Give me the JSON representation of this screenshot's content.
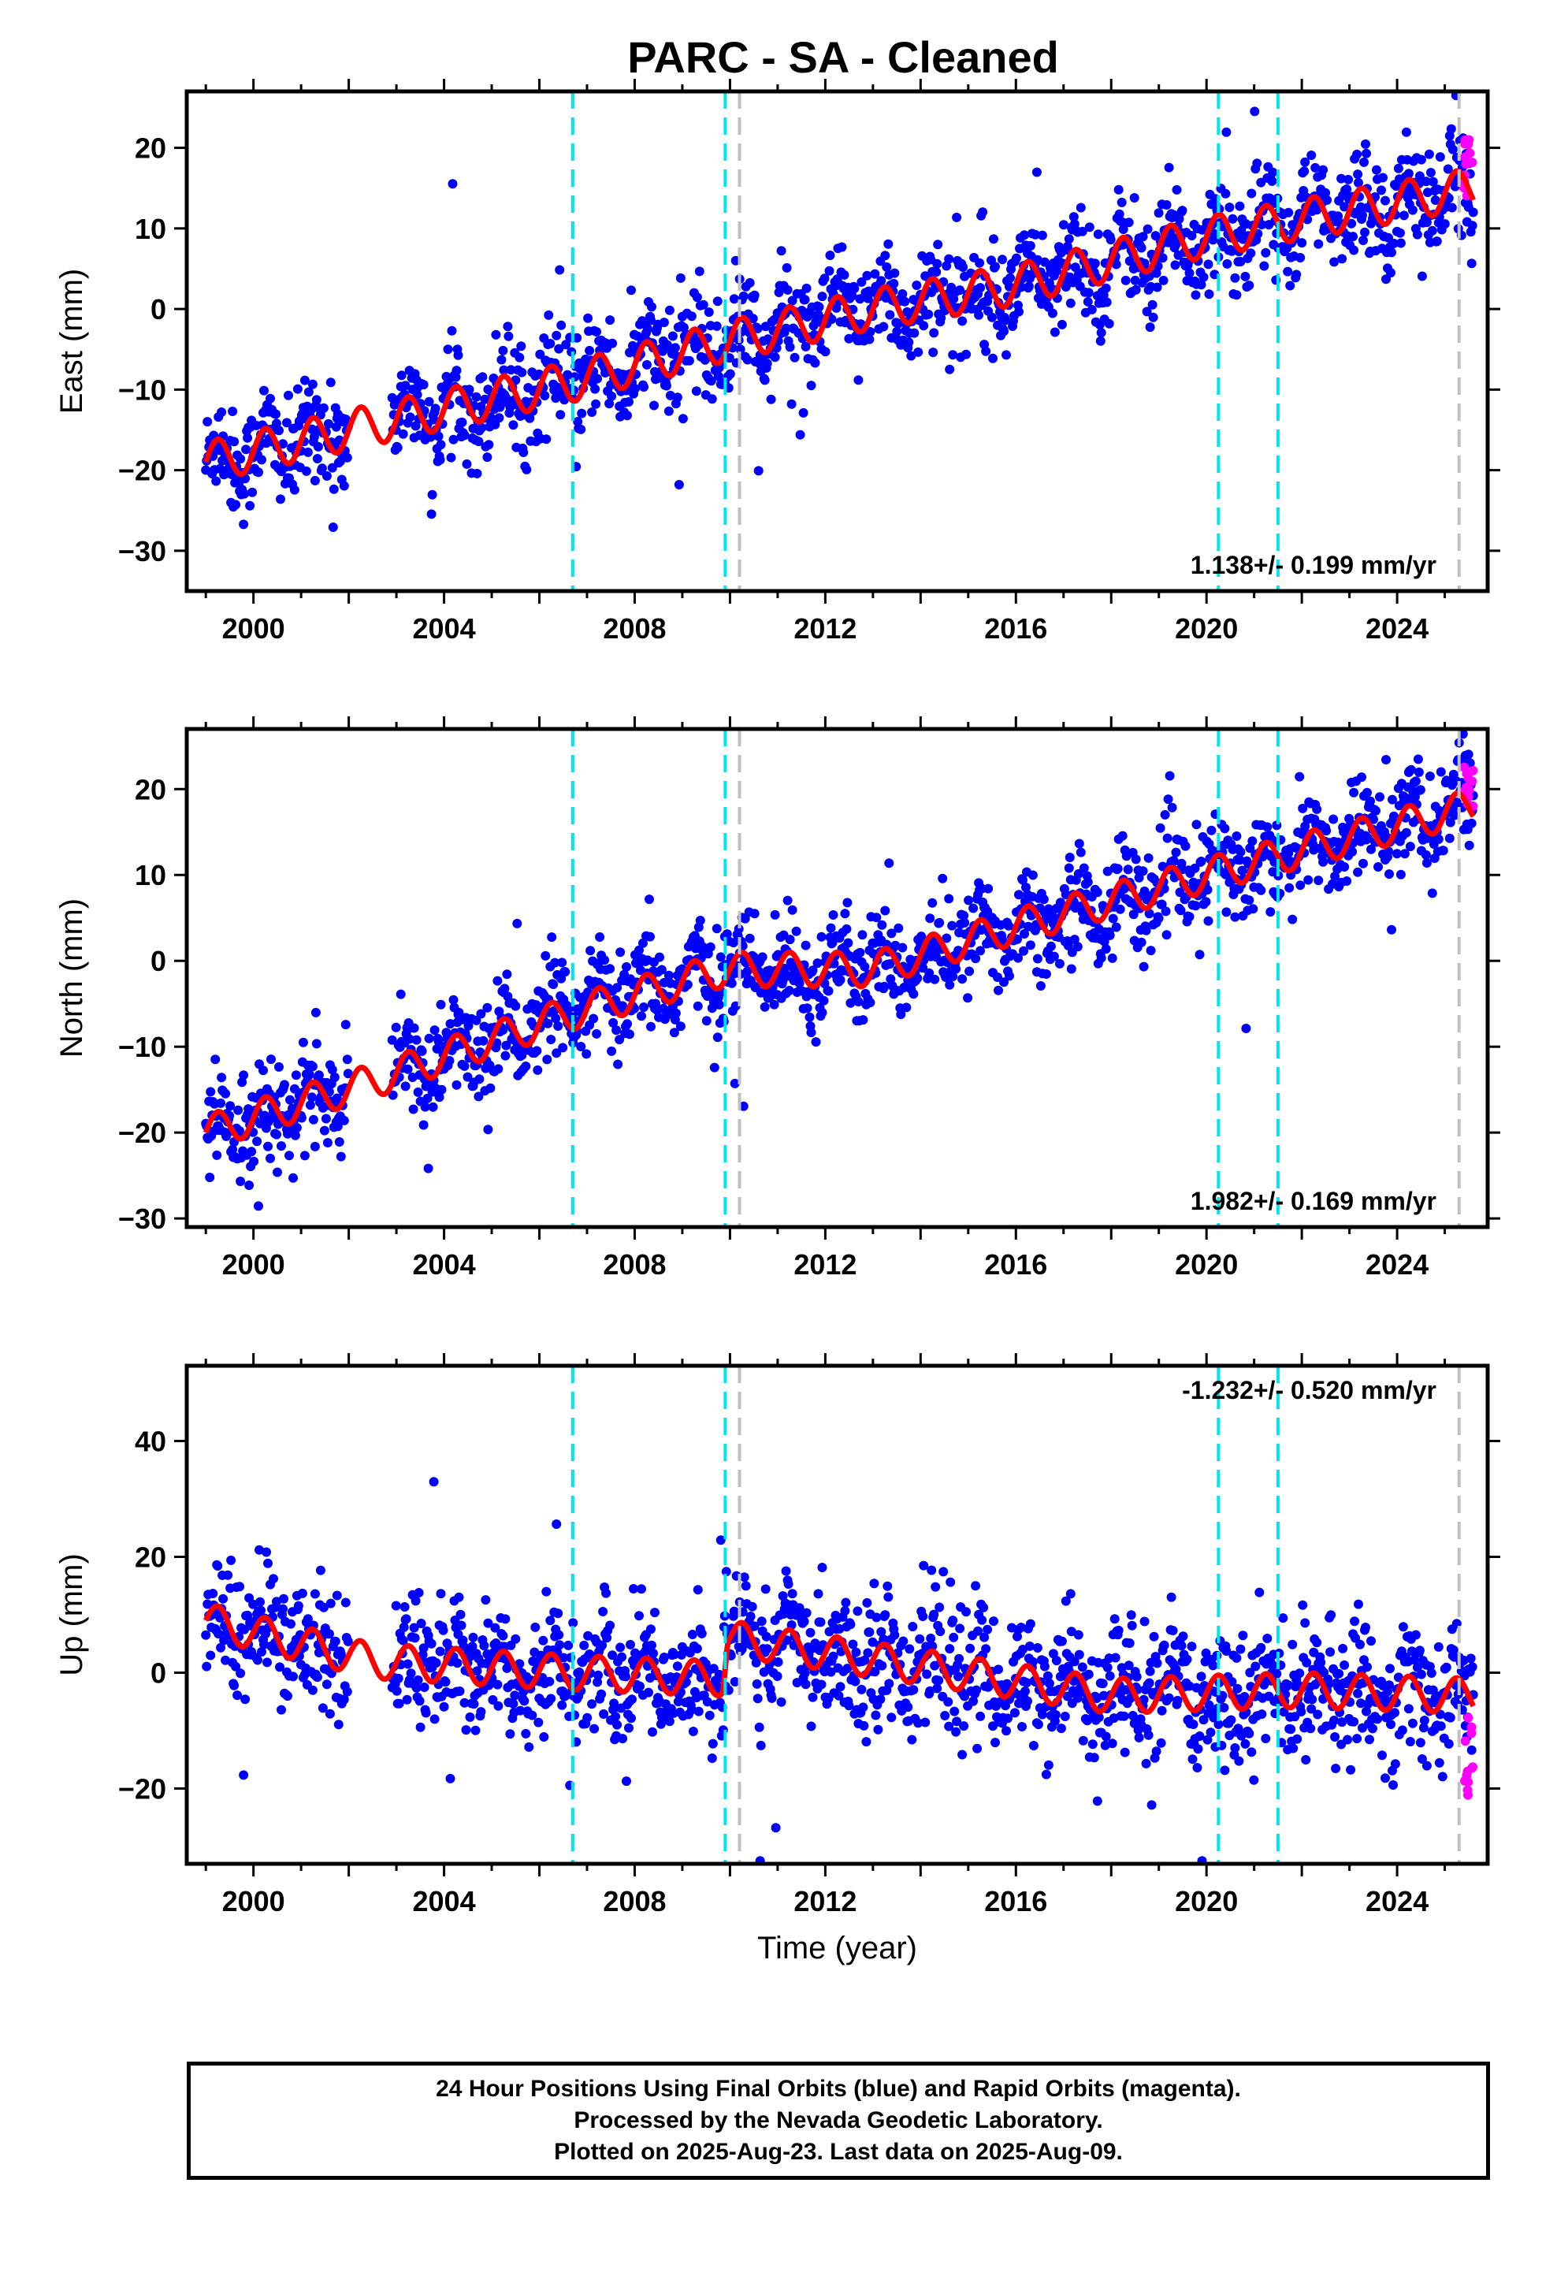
{
  "title": "PARC  - SA - Cleaned",
  "footer": {
    "line1": "24 Hour Positions Using Final Orbits (blue) and Rapid Orbits (magenta).",
    "line2": "Processed by the Nevada Geodetic Laboratory.",
    "line3": "Plotted on 2025-Aug-23. Last data on 2025-Aug-09."
  },
  "colors": {
    "final_orbits": "#0000ff",
    "rapid_orbits": "#ff00ff",
    "model_fit": "#ff0000",
    "equipment_change": "#00e5ee",
    "other_event": "#c0c0c0"
  },
  "chart_data": [
    {
      "type": "scatter",
      "ylabel": "East (mm)",
      "xlabel": "",
      "xlim": [
        1998.6,
        2025.9
      ],
      "ylim": [
        -35,
        27
      ],
      "xticks": [
        2000,
        2004,
        2008,
        2012,
        2016,
        2020,
        2024
      ],
      "yticks": [
        -30,
        -20,
        -10,
        0,
        10,
        20
      ],
      "rate_label": "1.138+/- 0.199 mm/yr",
      "grid": false,
      "event_lines_cyan": [
        2006.7,
        2009.9,
        2020.25,
        2021.5
      ],
      "event_lines_gray": [
        2010.2,
        2025.3
      ],
      "series": [
        {
          "name": "Final Orbits",
          "points": "daily cloud",
          "trend_x": [
            1999.0,
            2002.0,
            2006.7,
            2009.9,
            2013.0,
            2016.0,
            2020.0,
            2025.6
          ],
          "trend_y": [
            -19,
            -15,
            -9,
            -4,
            0,
            3,
            9,
            15
          ],
          "scatter_sd": 3.2
        },
        {
          "name": "Rapid Orbits",
          "x_range": [
            2025.4,
            2025.6
          ],
          "y_range": [
            13,
            21
          ]
        },
        {
          "name": "Model",
          "amplitude": 2.5
        }
      ]
    },
    {
      "type": "scatter",
      "ylabel": "North (mm)",
      "xlabel": "",
      "xlim": [
        1998.6,
        2025.9
      ],
      "ylim": [
        -31,
        27
      ],
      "xticks": [
        2000,
        2004,
        2008,
        2012,
        2016,
        2020,
        2024
      ],
      "yticks": [
        -30,
        -20,
        -10,
        0,
        10,
        20
      ],
      "rate_label": "1.982+/- 0.169 mm/yr",
      "grid": false,
      "event_lines_cyan": [
        2006.7,
        2009.9,
        2020.25,
        2021.5
      ],
      "event_lines_gray": [
        2010.2,
        2025.3
      ],
      "series": [
        {
          "name": "Final Orbits",
          "points": "daily cloud",
          "trend_x": [
            1999.0,
            2002.5,
            2006.7,
            2009.9,
            2013.0,
            2016.0,
            2020.0,
            2025.6
          ],
          "trend_y": [
            -20,
            -14,
            -6,
            -1,
            -1,
            4,
            10,
            18
          ],
          "scatter_sd": 2.8
        },
        {
          "name": "Rapid Orbits",
          "x_range": [
            2025.4,
            2025.6
          ],
          "y_range": [
            18,
            23
          ]
        },
        {
          "name": "Model",
          "amplitude": 2.0
        }
      ]
    },
    {
      "type": "scatter",
      "ylabel": "Up (mm)",
      "xlabel": "Time (year)",
      "xlim": [
        1998.6,
        2025.9
      ],
      "ylim": [
        -33,
        53
      ],
      "xticks": [
        2000,
        2004,
        2008,
        2012,
        2016,
        2020,
        2024
      ],
      "yticks": [
        -20,
        0,
        20,
        40
      ],
      "rate_label": "-1.232+/- 0.520 mm/yr",
      "grid": false,
      "event_lines_cyan": [
        2006.7,
        2009.9,
        2020.25,
        2021.5
      ],
      "event_lines_gray": [
        2010.2,
        2025.3
      ],
      "series": [
        {
          "name": "Final Orbits",
          "points": "daily cloud",
          "trend_x": [
            1999.0,
            2002.5,
            2006.7,
            2009.85,
            2009.95,
            2014.0,
            2018.0,
            2022.0,
            2025.6
          ],
          "trend_y": [
            9,
            2,
            0,
            -1,
            6,
            1,
            -4,
            -3,
            -4
          ],
          "scatter_sd": 5.5
        },
        {
          "name": "Rapid Orbits",
          "x_range": [
            2025.4,
            2025.6
          ],
          "y_range": [
            -24,
            -7
          ]
        },
        {
          "name": "Model",
          "amplitude": 3.0
        }
      ]
    }
  ]
}
